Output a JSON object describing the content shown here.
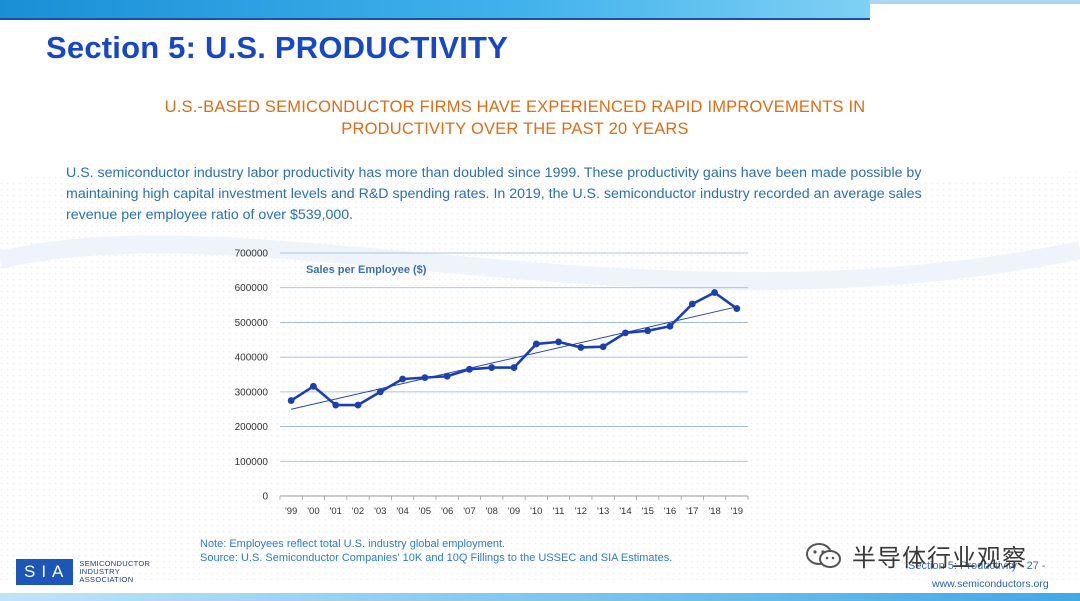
{
  "header": {
    "title": "Section 5: U.S. PRODUCTIVITY",
    "subtitle_line1": "U.S.-BASED SEMICONDUCTOR FIRMS HAVE EXPERIENCED RAPID IMPROVEMENTS IN",
    "subtitle_line2": "PRODUCTIVITY OVER THE PAST 20 YEARS"
  },
  "body": {
    "paragraph_line1": "U.S. semiconductor industry labor productivity has more than doubled since 1999. These productivity gains have been made possible by",
    "paragraph_line2": "maintaining high capital investment levels and R&D spending rates. In 2019, the U.S. semiconductor industry recorded an average sales",
    "paragraph_line3": "revenue per employee ratio of over $539,000."
  },
  "chart_data": {
    "type": "line",
    "title": "Sales per Employee ($)",
    "categories": [
      "'99",
      "'00",
      "'01",
      "'02",
      "'03",
      "'04",
      "'05",
      "'06",
      "'07",
      "'08",
      "'09",
      "'10",
      "'11",
      "'12",
      "'13",
      "'14",
      "'15",
      "'16",
      "'17",
      "'18",
      "'19"
    ],
    "series": [
      {
        "name": "Sales per Employee ($)",
        "values": [
          275000,
          316000,
          262000,
          262000,
          300000,
          337000,
          341000,
          345000,
          365000,
          370000,
          370000,
          438000,
          444000,
          428000,
          430000,
          470000,
          476000,
          489000,
          553000,
          586000,
          540000
        ]
      }
    ],
    "trendline": {
      "start": 250000,
      "end": 545000
    },
    "ylim": [
      0,
      700000
    ],
    "yticks": [
      "0",
      "100000",
      "200000",
      "300000",
      "400000",
      "500000",
      "600000",
      "700000"
    ],
    "grid": true,
    "colors": {
      "line": "#1b3fb0",
      "trend": "#2a45a8",
      "grid": "#8fb3d9"
    }
  },
  "footnotes": {
    "note": "Note: Employees reflect total U.S. industry global employment.",
    "source": "Source: U.S. Semiconductor Companies' 10K and 10Q Fillings to the USSEC and SIA Estimates."
  },
  "footer": {
    "logo_letters": "SIA",
    "logo_name_1": "SEMICONDUCTOR",
    "logo_name_2": "INDUSTRY",
    "logo_name_3": "ASSOCIATION",
    "watermark": "半导体行业观察",
    "section_label": "Section 5: Productivity - 27 -",
    "url": "www.semiconductors.org"
  }
}
